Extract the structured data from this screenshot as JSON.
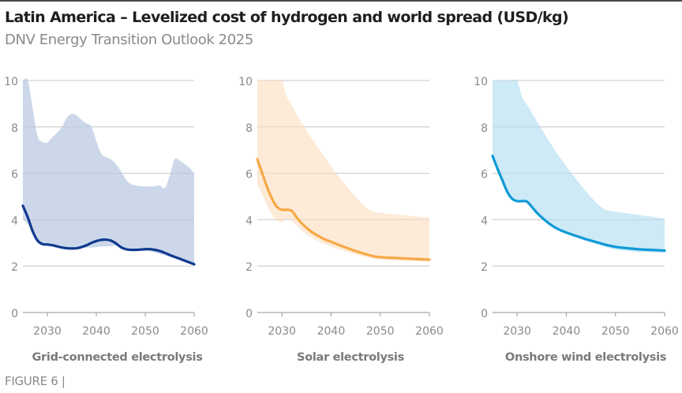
{
  "header": {
    "title": "Latin America – Levelized cost of hydrogen and world spread (USD/kg)",
    "subtitle": "DNV Energy Transition Outlook 2025"
  },
  "footer": {
    "figure_label": "FIGURE 6 |"
  },
  "chart_data": [
    {
      "type": "area",
      "title": "Grid-connected electrolysis",
      "xlabel": "Grid-connected electrolysis",
      "ylabel": "USD/kg",
      "xlim": [
        2025,
        2060
      ],
      "ylim": [
        0,
        10
      ],
      "xticks": [
        2030,
        2040,
        2050,
        2060
      ],
      "yticks": [
        0,
        2,
        4,
        6,
        8,
        10
      ],
      "grid": true,
      "colors": {
        "line": "#0f3a8e",
        "band": "#ccd8ea"
      },
      "x": [
        2025,
        2026,
        2027,
        2028,
        2029,
        2030,
        2031,
        2032,
        2033,
        2034,
        2035,
        2036,
        2037,
        2038,
        2039,
        2040,
        2041,
        2042,
        2043,
        2044,
        2045,
        2046,
        2047,
        2048,
        2049,
        2050,
        2051,
        2052,
        2053,
        2054,
        2055,
        2056,
        2057,
        2058,
        2059,
        2060
      ],
      "series": [
        {
          "name": "Latin America",
          "values": [
            4.6,
            4.1,
            3.5,
            3.1,
            2.95,
            2.93,
            2.9,
            2.85,
            2.8,
            2.77,
            2.76,
            2.77,
            2.82,
            2.9,
            3.0,
            3.08,
            3.13,
            3.14,
            3.1,
            2.98,
            2.82,
            2.73,
            2.7,
            2.7,
            2.71,
            2.73,
            2.73,
            2.7,
            2.65,
            2.57,
            2.48,
            2.4,
            2.32,
            2.24,
            2.16,
            2.08
          ]
        },
        {
          "name": "World spread (upper)",
          "values": [
            10.0,
            10.0,
            8.8,
            7.6,
            7.35,
            7.33,
            7.55,
            7.75,
            8.0,
            8.4,
            8.55,
            8.5,
            8.3,
            8.15,
            8.0,
            7.4,
            6.85,
            6.7,
            6.6,
            6.4,
            6.1,
            5.75,
            5.55,
            5.48,
            5.45,
            5.43,
            5.43,
            5.45,
            5.47,
            5.37,
            5.9,
            6.6,
            6.55,
            6.4,
            6.25,
            6.0
          ]
        },
        {
          "name": "World spread (lower)",
          "values": [
            4.0,
            3.8,
            3.5,
            3.2,
            2.95,
            2.92,
            2.88,
            2.84,
            2.8,
            2.78,
            2.76,
            2.76,
            2.78,
            2.8,
            2.8,
            2.82,
            2.84,
            2.85,
            2.86,
            2.88,
            2.8,
            2.72,
            2.68,
            2.66,
            2.66,
            2.66,
            2.64,
            2.58,
            2.52,
            2.46,
            2.4,
            2.33,
            2.26,
            2.2,
            2.14,
            2.08
          ]
        }
      ]
    },
    {
      "type": "area",
      "title": "Solar electrolysis",
      "xlabel": "Solar electrolysis",
      "ylabel": "USD/kg",
      "xlim": [
        2025,
        2060
      ],
      "ylim": [
        0,
        10
      ],
      "xticks": [
        2030,
        2040,
        2050,
        2060
      ],
      "yticks": [
        0,
        2,
        4,
        6,
        8,
        10
      ],
      "grid": true,
      "colors": {
        "line": "#f7a846",
        "band": "#fdebd8"
      },
      "x": [
        2025,
        2026,
        2027,
        2028,
        2029,
        2030,
        2031,
        2032,
        2033,
        2034,
        2035,
        2036,
        2037,
        2038,
        2039,
        2040,
        2041,
        2042,
        2043,
        2044,
        2045,
        2046,
        2047,
        2048,
        2049,
        2050,
        2051,
        2052,
        2053,
        2054,
        2055,
        2056,
        2057,
        2058,
        2059,
        2060
      ],
      "series": [
        {
          "name": "Latin America",
          "values": [
            6.6,
            6.0,
            5.4,
            4.9,
            4.55,
            4.43,
            4.43,
            4.38,
            4.1,
            3.85,
            3.65,
            3.48,
            3.35,
            3.23,
            3.13,
            3.05,
            2.96,
            2.88,
            2.8,
            2.72,
            2.65,
            2.58,
            2.52,
            2.46,
            2.41,
            2.39,
            2.37,
            2.36,
            2.35,
            2.34,
            2.33,
            2.32,
            2.31,
            2.3,
            2.29,
            2.28
          ]
        },
        {
          "name": "World spread (upper)",
          "values": [
            10.0,
            10.0,
            10.0,
            10.0,
            10.0,
            10.0,
            9.3,
            8.95,
            8.55,
            8.2,
            7.85,
            7.52,
            7.2,
            6.9,
            6.6,
            6.3,
            6.02,
            5.75,
            5.48,
            5.22,
            4.98,
            4.75,
            4.55,
            4.4,
            4.33,
            4.3,
            4.27,
            4.25,
            4.23,
            4.21,
            4.19,
            4.17,
            4.15,
            4.13,
            4.11,
            4.1
          ]
        },
        {
          "name": "World spread (lower)",
          "values": [
            5.5,
            5.1,
            4.6,
            4.2,
            3.95,
            3.9,
            4.05,
            3.95,
            3.75,
            3.55,
            3.38,
            3.24,
            3.12,
            3.02,
            2.93,
            2.85,
            2.77,
            2.7,
            2.63,
            2.56,
            2.5,
            2.44,
            2.39,
            2.34,
            2.3,
            2.27,
            2.26,
            2.25,
            2.24,
            2.23,
            2.22,
            2.21,
            2.2,
            2.2,
            2.19,
            2.19
          ]
        }
      ]
    },
    {
      "type": "area",
      "title": "Onshore wind electrolysis",
      "xlabel": "Onshore wind electrolysis",
      "ylabel": "USD/kg",
      "xlim": [
        2025,
        2060
      ],
      "ylim": [
        0,
        10
      ],
      "xticks": [
        2030,
        2040,
        2050,
        2060
      ],
      "yticks": [
        0,
        2,
        4,
        6,
        8,
        10
      ],
      "grid": true,
      "colors": {
        "line": "#0e9ad7",
        "band": "#cdeaf6"
      },
      "x": [
        2025,
        2026,
        2027,
        2028,
        2029,
        2030,
        2031,
        2032,
        2033,
        2034,
        2035,
        2036,
        2037,
        2038,
        2039,
        2040,
        2041,
        2042,
        2043,
        2044,
        2045,
        2046,
        2047,
        2048,
        2049,
        2050,
        2051,
        2052,
        2053,
        2054,
        2055,
        2056,
        2057,
        2058,
        2059,
        2060
      ],
      "series": [
        {
          "name": "Latin America",
          "values": [
            6.75,
            6.2,
            5.7,
            5.2,
            4.9,
            4.8,
            4.8,
            4.78,
            4.55,
            4.3,
            4.1,
            3.92,
            3.76,
            3.63,
            3.53,
            3.45,
            3.37,
            3.3,
            3.23,
            3.16,
            3.1,
            3.04,
            2.98,
            2.92,
            2.87,
            2.83,
            2.8,
            2.78,
            2.76,
            2.74,
            2.72,
            2.71,
            2.7,
            2.69,
            2.68,
            2.67
          ]
        },
        {
          "name": "World spread (upper)",
          "values": [
            10.0,
            10.0,
            10.0,
            10.0,
            10.0,
            10.0,
            9.3,
            8.95,
            8.6,
            8.25,
            7.9,
            7.55,
            7.22,
            6.9,
            6.6,
            6.3,
            6.02,
            5.75,
            5.48,
            5.22,
            4.98,
            4.75,
            4.56,
            4.42,
            4.38,
            4.35,
            4.32,
            4.29,
            4.26,
            4.23,
            4.2,
            4.17,
            4.14,
            4.11,
            4.08,
            4.05
          ]
        },
        {
          "name": "World spread (lower)",
          "values": [
            6.75,
            6.2,
            5.7,
            5.2,
            4.9,
            4.8,
            4.8,
            4.78,
            4.55,
            4.3,
            4.1,
            3.92,
            3.76,
            3.63,
            3.53,
            3.42,
            3.33,
            3.25,
            3.17,
            3.09,
            3.02,
            2.95,
            2.88,
            2.82,
            2.76,
            2.72,
            2.68,
            2.66,
            2.64,
            2.62,
            2.61,
            2.6,
            2.59,
            2.58,
            2.57,
            2.56
          ]
        }
      ]
    }
  ]
}
